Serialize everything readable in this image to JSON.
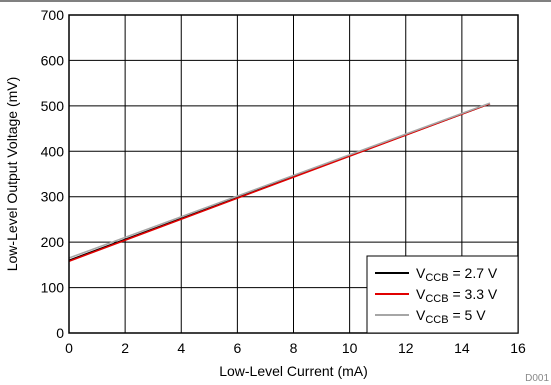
{
  "chart_data": {
    "type": "line",
    "title": "",
    "xlabel": "Low-Level Current (mA)",
    "ylabel": "Low-Level Output Voltage (mV)",
    "xlim": [
      0,
      16
    ],
    "ylim": [
      0,
      700
    ],
    "xticks": [
      0,
      2,
      4,
      6,
      8,
      10,
      12,
      14,
      16
    ],
    "yticks": [
      0,
      100,
      200,
      300,
      400,
      500,
      600,
      700
    ],
    "grid": true,
    "legend_position": "bottom-right",
    "series": [
      {
        "name_main": "V",
        "name_sub": "CCB",
        "name_rest": " = 2.7 V",
        "color": "#000000",
        "x": [
          0,
          15
        ],
        "y": [
          160,
          505
        ]
      },
      {
        "name_main": "V",
        "name_sub": "CCB",
        "name_rest": " = 3.3 V",
        "color": "#e00000",
        "x": [
          0,
          15
        ],
        "y": [
          158,
          505
        ]
      },
      {
        "name_main": "V",
        "name_sub": "CCB",
        "name_rest": " = 5 V",
        "color": "#a6a6a6",
        "x": [
          0,
          15
        ],
        "y": [
          165,
          506
        ]
      }
    ],
    "figure_id": "D001"
  }
}
